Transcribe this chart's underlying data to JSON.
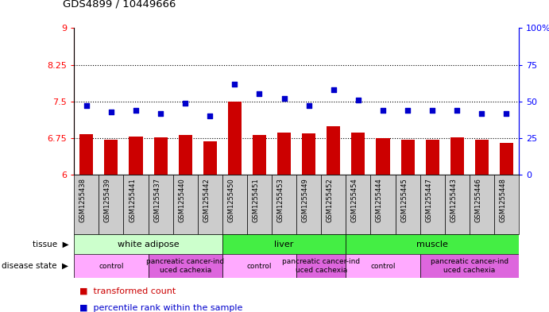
{
  "title": "GDS4899 / 10449666",
  "samples": [
    "GSM1255438",
    "GSM1255439",
    "GSM1255441",
    "GSM1255437",
    "GSM1255440",
    "GSM1255442",
    "GSM1255450",
    "GSM1255451",
    "GSM1255453",
    "GSM1255449",
    "GSM1255452",
    "GSM1255454",
    "GSM1255444",
    "GSM1255445",
    "GSM1255447",
    "GSM1255443",
    "GSM1255446",
    "GSM1255448"
  ],
  "bar_values": [
    6.83,
    6.72,
    6.78,
    6.76,
    6.81,
    6.68,
    7.5,
    6.82,
    6.87,
    6.84,
    7.0,
    6.87,
    6.75,
    6.71,
    6.72,
    6.77,
    6.72,
    6.65
  ],
  "scatter_values": [
    47,
    43,
    44,
    42,
    49,
    40,
    62,
    55,
    52,
    47,
    58,
    51,
    44,
    44,
    44,
    44,
    42,
    42
  ],
  "ylim_left": [
    6,
    9
  ],
  "ylim_right": [
    0,
    100
  ],
  "yticks_left": [
    6,
    6.75,
    7.5,
    8.25,
    9
  ],
  "yticks_right": [
    0,
    25,
    50,
    75,
    100
  ],
  "ytick_labels_left": [
    "6",
    "6.75",
    "7.5",
    "8.25",
    "9"
  ],
  "ytick_labels_right": [
    "0",
    "25",
    "50",
    "75",
    "100%"
  ],
  "hlines": [
    6.75,
    7.5,
    8.25
  ],
  "bar_color": "#cc0000",
  "scatter_color": "#0000cc",
  "tissue_groups": [
    {
      "label": "white adipose",
      "start": 0,
      "end": 6,
      "color": "#ccffcc"
    },
    {
      "label": "liver",
      "start": 6,
      "end": 11,
      "color": "#44ee44"
    },
    {
      "label": "muscle",
      "start": 11,
      "end": 18,
      "color": "#44ee44"
    }
  ],
  "disease_groups": [
    {
      "label": "control",
      "start": 0,
      "end": 3,
      "color": "#ffaaff"
    },
    {
      "label": "pancreatic cancer-ind\nuced cachexia",
      "start": 3,
      "end": 6,
      "color": "#dd66dd"
    },
    {
      "label": "control",
      "start": 6,
      "end": 9,
      "color": "#ffaaff"
    },
    {
      "label": "pancreatic cancer-ind\nuced cachexia",
      "start": 9,
      "end": 11,
      "color": "#dd66dd"
    },
    {
      "label": "control",
      "start": 11,
      "end": 14,
      "color": "#ffaaff"
    },
    {
      "label": "pancreatic cancer-ind\nuced cachexia",
      "start": 14,
      "end": 18,
      "color": "#dd66dd"
    }
  ],
  "legend_items": [
    {
      "label": "transformed count",
      "color": "#cc0000"
    },
    {
      "label": "percentile rank within the sample",
      "color": "#0000cc"
    }
  ],
  "tissue_label": "tissue",
  "disease_label": "disease state",
  "xtick_bg": "#cccccc"
}
